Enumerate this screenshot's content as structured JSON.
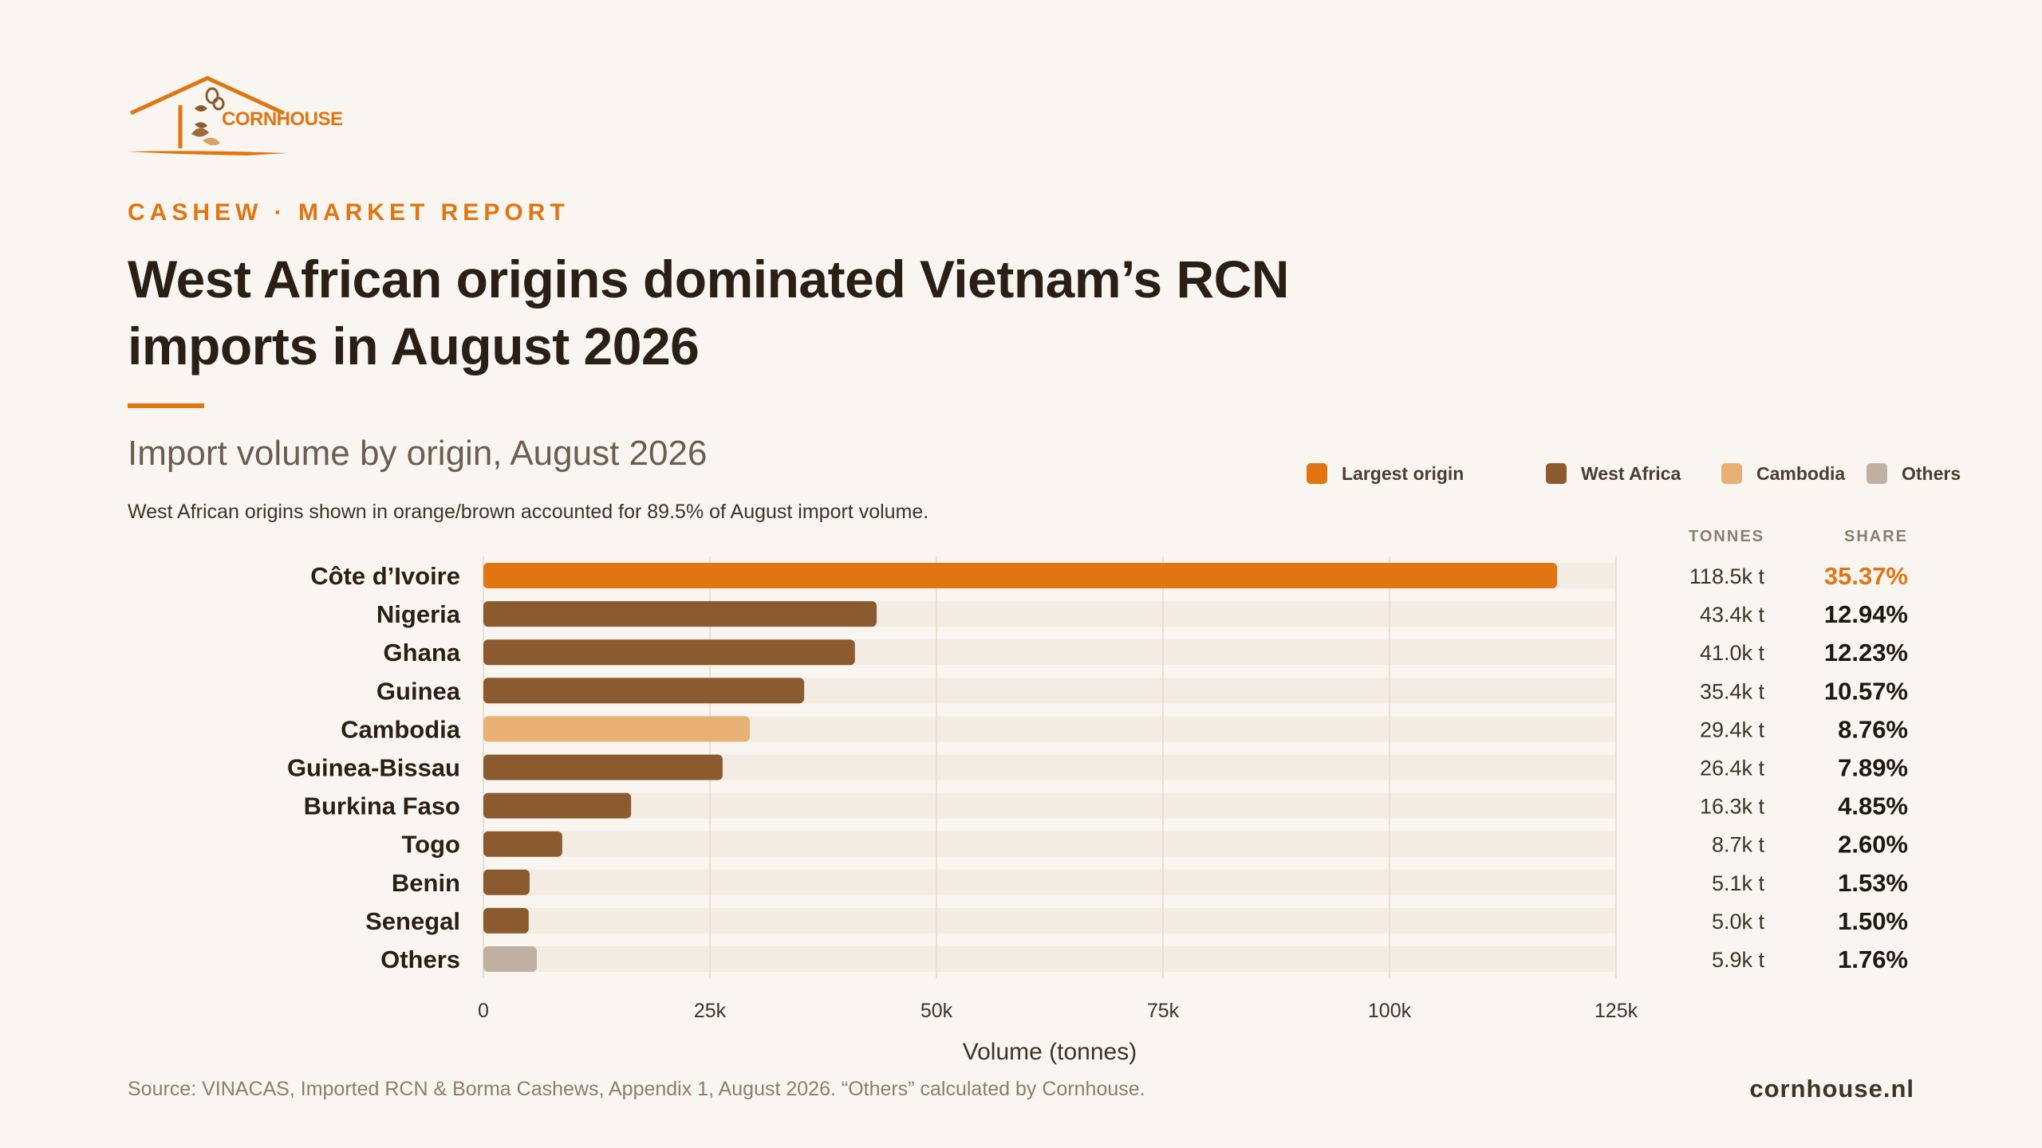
{
  "brand": {
    "logo_text": "CORNHOUSE",
    "website": "cornhouse.nl"
  },
  "header": {
    "kicker": "CASHEW · MARKET REPORT",
    "title_line1": "West African origins dominated Vietnam’s RCN",
    "title_line2": "imports in August 2026"
  },
  "chart_header": {
    "subtitle": "Import volume by origin, August 2026",
    "note": "West African origins shown in orange/brown accounted for 89.5% of August import volume."
  },
  "legend": [
    {
      "label": "Largest origin",
      "color": "#e07511"
    },
    {
      "label": "West Africa",
      "color": "#8b5a2f"
    },
    {
      "label": "Cambodia",
      "color": "#e7b176"
    },
    {
      "label": "Others",
      "color": "#bfb0a2"
    }
  ],
  "table_headers": {
    "tonnes": "TONNES",
    "share": "SHARE"
  },
  "chart_data": {
    "type": "bar",
    "orientation": "horizontal",
    "xlabel": "Volume (tonnes)",
    "xlim": [
      0,
      125000
    ],
    "xticks": [
      0,
      25000,
      50000,
      75000,
      100000,
      125000
    ],
    "xtick_labels": [
      "0",
      "25k",
      "50k",
      "75k",
      "100k",
      "125k"
    ],
    "grid": true,
    "categories": [
      "Côte d’Ivoire",
      "Nigeria",
      "Ghana",
      "Guinea",
      "Cambodia",
      "Guinea-Bissau",
      "Burkina Faso",
      "Togo",
      "Benin",
      "Senegal",
      "Others"
    ],
    "values": [
      118500,
      43400,
      41000,
      35400,
      29400,
      26400,
      16300,
      8700,
      5100,
      5000,
      5900
    ],
    "groups": [
      "Largest origin",
      "West Africa",
      "West Africa",
      "West Africa",
      "Cambodia",
      "West Africa",
      "West Africa",
      "West Africa",
      "West Africa",
      "West Africa",
      "Others"
    ],
    "tonnes_labels": [
      "118.5k t",
      "43.4k t",
      "41.0k t",
      "35.4k t",
      "29.4k t",
      "26.4k t",
      "16.3k t",
      "8.7k t",
      "5.1k t",
      "5.0k t",
      "5.9k t"
    ],
    "share_labels": [
      "35.37%",
      "12.94%",
      "12.23%",
      "10.57%",
      "8.76%",
      "7.89%",
      "4.85%",
      "2.60%",
      "1.53%",
      "1.50%",
      "1.76%"
    ]
  },
  "footer": {
    "source": "Source: VINACAS, Imported RCN & Borma Cashews, Appendix 1, August 2026. “Others” calculated by Cornhouse."
  }
}
